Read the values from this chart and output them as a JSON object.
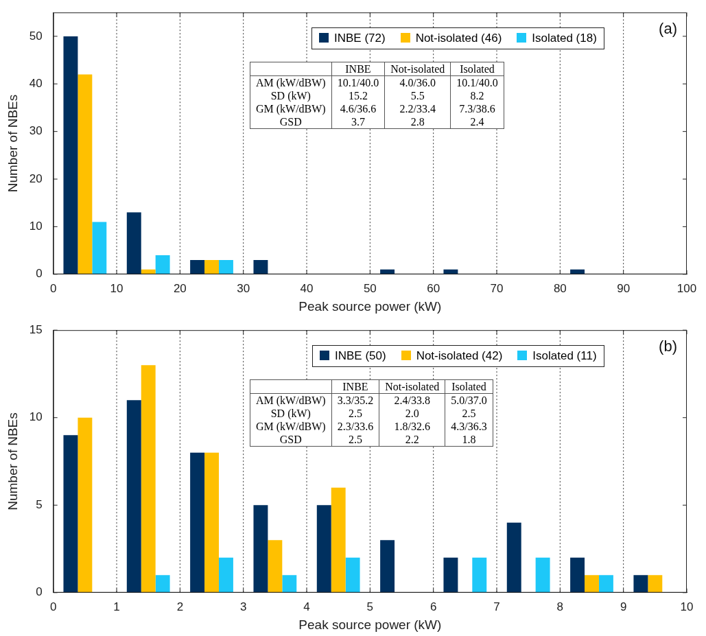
{
  "chart_data": [
    {
      "type": "histogram",
      "title": "(a)",
      "xlabel": "Peak source power (kW)",
      "ylabel": "Number of NBEs",
      "bins": [
        0,
        10,
        20,
        30,
        40,
        50,
        60,
        70,
        80,
        90,
        100
      ],
      "series": [
        {
          "name": "INBE (72)",
          "color": "#00305f",
          "values": [
            50,
            13,
            3,
            3,
            0,
            1,
            1,
            0,
            1,
            0
          ]
        },
        {
          "name": "Not-isolated (46)",
          "color": "#ffc000",
          "values": [
            42,
            1,
            3,
            0,
            0,
            0,
            0,
            0,
            0,
            0
          ]
        },
        {
          "name": "Isolated (18)",
          "color": "#1ec8f8",
          "values": [
            11,
            4,
            3,
            0,
            0,
            0,
            0,
            0,
            0,
            0
          ]
        }
      ],
      "xlim": [
        0,
        100
      ],
      "xticks": [
        0,
        10,
        20,
        30,
        40,
        50,
        60,
        70,
        80,
        90,
        100
      ],
      "ylim": [
        0,
        55
      ],
      "yticks": [
        0,
        10,
        20,
        30,
        40,
        50
      ],
      "grid": "x",
      "legend": "top right",
      "annotations": [
        "INBE",
        "Not-isolated",
        "Isolated",
        "AM (kW/dBW)",
        "10.1/40.0",
        "4.0/36.0",
        "10.1/40.0",
        "SD (kW)",
        "15.2",
        "5.5",
        "8.2",
        "GM (kW/dBW)",
        "4.6/36.6",
        "2.2/33.4",
        "7.3/38.6",
        "GSD",
        "3.7",
        "2.8",
        "2.4"
      ]
    },
    {
      "type": "histogram",
      "title": "(b)",
      "xlabel": "Peak source power (kW)",
      "ylabel": "Number of NBEs",
      "bins": [
        0,
        1,
        2,
        3,
        4,
        5,
        6,
        7,
        8,
        9,
        10
      ],
      "series": [
        {
          "name": "INBE (50)",
          "color": "#00305f",
          "values": [
            9,
            11,
            8,
            5,
            5,
            3,
            2,
            4,
            2,
            1
          ]
        },
        {
          "name": "Not-isolated (42)",
          "color": "#ffc000",
          "values": [
            10,
            13,
            8,
            3,
            6,
            0,
            0,
            0,
            1,
            1
          ]
        },
        {
          "name": "Isolated (11)",
          "color": "#1ec8f8",
          "values": [
            0,
            1,
            2,
            1,
            2,
            0,
            2,
            2,
            1,
            0
          ]
        }
      ],
      "xlim": [
        0,
        10
      ],
      "xticks": [
        0,
        1,
        2,
        3,
        4,
        5,
        6,
        7,
        8,
        9,
        10
      ],
      "ylim": [
        0,
        15
      ],
      "yticks": [
        0,
        5,
        10,
        15
      ],
      "grid": "x",
      "legend": "top right",
      "annotations": [
        "INBE",
        "Not-isolated",
        "Isolated",
        "AM (kW/dBW)",
        "3.3/35.2",
        "2.4/33.8",
        "5.0/37.0",
        "SD (kW)",
        "2.5",
        "2.0",
        "2.5",
        "GM (kW/dBW)",
        "2.3/33.6",
        "1.8/32.6",
        "4.3/36.3",
        "GSD",
        "2.5",
        "2.2",
        "1.8"
      ]
    }
  ]
}
